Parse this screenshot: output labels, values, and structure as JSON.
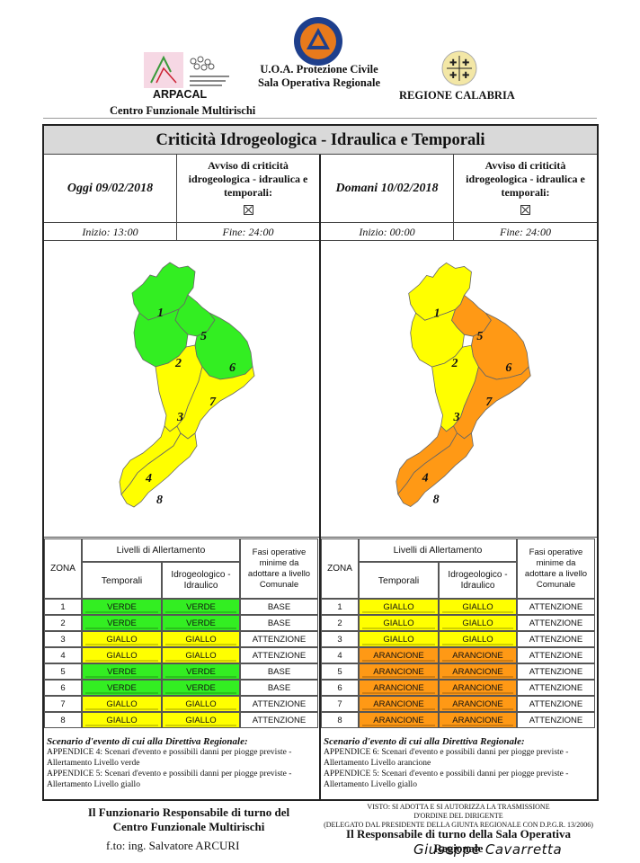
{
  "header": {
    "arpacal": "ARPACAL",
    "centro": "Centro Funzionale Multirischi",
    "uoa_line1": "U.O.A. Protezione Civile",
    "uoa_line2": "Sala Operativa Regionale",
    "regione": "REGIONE CALABRIA"
  },
  "title": "Criticità Idrogeologica - Idraulica e Temporali",
  "avviso_text": "Avviso di criticità idrogeologica - idraulica e temporali:",
  "today": {
    "date": "Oggi 09/02/2018",
    "start": "Inizio: 13:00",
    "end": "Fine: 24:00",
    "zones": {
      "1": "VERDE",
      "2": "VERDE",
      "3": "GIALLO",
      "4": "GIALLO",
      "5": "VERDE",
      "6": "VERDE",
      "7": "GIALLO",
      "8": "GIALLO"
    }
  },
  "tomorrow": {
    "date": "Domani 10/02/2018",
    "start": "Inizio: 00:00",
    "end": "Fine: 24:00",
    "zones": {
      "1": "GIALLO",
      "2": "GIALLO",
      "3": "GIALLO",
      "4": "ARANCIONE",
      "5": "ARANCIONE",
      "6": "ARANCIONE",
      "7": "ARANCIONE",
      "8": "ARANCIONE"
    }
  },
  "table_header": {
    "zona": "ZONA",
    "livelli": "Livelli di Allertamento",
    "temporali": "Temporali",
    "idro": "Idrogeologico - Idraulico",
    "fasi": "Fasi operative minime da adottare a livello Comunale"
  },
  "table_left": [
    {
      "zona": "1",
      "temporali": "VERDE",
      "idro": "VERDE",
      "fase": "BASE"
    },
    {
      "zona": "2",
      "temporali": "VERDE",
      "idro": "VERDE",
      "fase": "BASE"
    },
    {
      "zona": "3",
      "temporali": "GIALLO",
      "idro": "GIALLO",
      "fase": "ATTENZIONE"
    },
    {
      "zona": "4",
      "temporali": "GIALLO",
      "idro": "GIALLO",
      "fase": "ATTENZIONE"
    },
    {
      "zona": "5",
      "temporali": "VERDE",
      "idro": "VERDE",
      "fase": "BASE"
    },
    {
      "zona": "6",
      "temporali": "VERDE",
      "idro": "VERDE",
      "fase": "BASE"
    },
    {
      "zona": "7",
      "temporali": "GIALLO",
      "idro": "GIALLO",
      "fase": "ATTENZIONE"
    },
    {
      "zona": "8",
      "temporali": "GIALLO",
      "idro": "GIALLO",
      "fase": "ATTENZIONE"
    }
  ],
  "table_right": [
    {
      "zona": "1",
      "temporali": "GIALLO",
      "idro": "GIALLO",
      "fase": "ATTENZIONE"
    },
    {
      "zona": "2",
      "temporali": "GIALLO",
      "idro": "GIALLO",
      "fase": "ATTENZIONE"
    },
    {
      "zona": "3",
      "temporali": "GIALLO",
      "idro": "GIALLO",
      "fase": "ATTENZIONE"
    },
    {
      "zona": "4",
      "temporali": "ARANCIONE",
      "idro": "ARANCIONE",
      "fase": "ATTENZIONE"
    },
    {
      "zona": "5",
      "temporali": "ARANCIONE",
      "idro": "ARANCIONE",
      "fase": "ATTENZIONE"
    },
    {
      "zona": "6",
      "temporali": "ARANCIONE",
      "idro": "ARANCIONE",
      "fase": "ATTENZIONE"
    },
    {
      "zona": "7",
      "temporali": "ARANCIONE",
      "idro": "ARANCIONE",
      "fase": "ATTENZIONE"
    },
    {
      "zona": "8",
      "temporali": "ARANCIONE",
      "idro": "ARANCIONE",
      "fase": "ATTENZIONE"
    }
  ],
  "scenario_left": {
    "title": "Scenario d'evento di cui alla Direttiva Regionale:",
    "lines": [
      "APPENDICE 4: Scenari d'evento e possibili danni per piogge previste - Allertamento Livello verde",
      "APPENDICE 5: Scenari d'evento e possibili danni per piogge previste - Allertamento Livello giallo"
    ]
  },
  "scenario_right": {
    "title": "Scenario d'evento di cui alla Direttiva Regionale:",
    "lines": [
      "APPENDICE 6: Scenari d'evento e possibili danni per piogge previste - Allertamento Livello arancione",
      "APPENDICE 5: Scenari d'evento e possibili danni per piogge previste - Allertamento Livello giallo"
    ]
  },
  "footer": {
    "left_title": "Il Funzionario Responsabile di turno del Centro Funzionale Multirischi",
    "left_sign": "f.to: ing. Salvatore ARCURI",
    "visto_1": "VISTO: SI ADOTTA E SI AUTORIZZA LA TRASMISSIONE",
    "visto_2": "D'ORDINE DEL DIRIGENTE",
    "visto_3": "(DELEGATO DAL PRESIDENTE DELLA GIUNTA REGIONALE CON D.P.G.R. 13/2006)",
    "right_title": "Il Responsabile di turno della Sala Operativa Regionale",
    "right_sign": "Giuseppe Cavarretta"
  },
  "colors": {
    "VERDE": "#33ee22",
    "GIALLO": "#ffff00",
    "ARANCIONE": "#ff9915"
  }
}
